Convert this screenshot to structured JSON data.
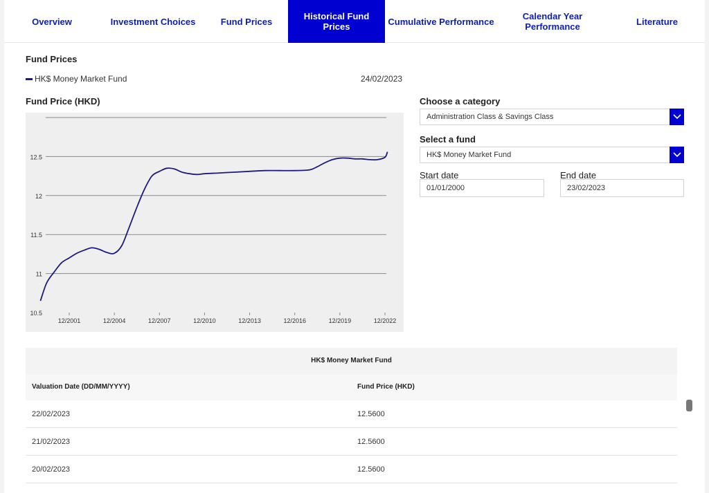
{
  "nav": {
    "tabs": [
      {
        "label": "Overview",
        "active": false
      },
      {
        "label": "Investment Choices",
        "active": false
      },
      {
        "label": "Fund Prices",
        "active": false
      },
      {
        "label": "Historical Fund Prices",
        "active": true
      },
      {
        "label": "Cumulative Performance",
        "active": false
      },
      {
        "label": "Calendar Year Performance",
        "active": false
      },
      {
        "label": "Literature",
        "active": false
      }
    ]
  },
  "fund_prices": {
    "title": "Fund Prices",
    "legend_fund": "HK$ Money Market Fund",
    "legend_date": "24/02/2023",
    "chart_title": "Fund Price (HKD)"
  },
  "filters": {
    "category_label": "Choose a category",
    "category_value": "Administration Class & Savings Class",
    "fund_label": "Select a fund",
    "fund_value": "HK$ Money Market Fund",
    "start_label": "Start date",
    "start_value": "01/01/2000",
    "end_label": "End date",
    "end_value": "23/02/2023"
  },
  "table": {
    "title": "HK$ Money Market Fund",
    "col_date": "Valuation Date (DD/MM/YYYY)",
    "col_price": "Fund Price (HKD)",
    "rows": [
      {
        "date": "22/02/2023",
        "price": "12.5600"
      },
      {
        "date": "21/02/2023",
        "price": "12.5600"
      },
      {
        "date": "20/02/2023",
        "price": "12.5600"
      }
    ]
  },
  "chart_data": {
    "type": "line",
    "title": "",
    "xlabel": "",
    "ylabel": "",
    "ylim": [
      10.5,
      13.0
    ],
    "yticks": [
      10.5,
      11,
      11.5,
      12,
      12.5
    ],
    "ytick_labels": [
      "10.5",
      "11",
      "11.5",
      "12",
      "12.5"
    ],
    "xticks": [
      "12/2001",
      "12/2004",
      "12/2007",
      "12/2010",
      "12/2013",
      "12/2016",
      "12/2019",
      "12/2022"
    ],
    "grid": true,
    "color": "#1a1a80",
    "series": [
      {
        "x": [
          "01/2000",
          "06/2000",
          "12/2000",
          "06/2001",
          "12/2001",
          "06/2002",
          "12/2002",
          "06/2003",
          "12/2003",
          "06/2004",
          "12/2004",
          "06/2005",
          "12/2005",
          "06/2006",
          "12/2006",
          "06/2007",
          "12/2007",
          "06/2008",
          "12/2008",
          "06/2009",
          "12/2009",
          "06/2010",
          "12/2010",
          "12/2011",
          "12/2012",
          "12/2013",
          "12/2014",
          "12/2015",
          "12/2016",
          "12/2017",
          "06/2018",
          "12/2018",
          "06/2019",
          "12/2019",
          "06/2020",
          "12/2020",
          "06/2021",
          "12/2021",
          "06/2022",
          "12/2022",
          "02/2023"
        ],
        "y": [
          10.65,
          10.88,
          11.02,
          11.14,
          11.2,
          11.26,
          11.3,
          11.33,
          11.31,
          11.27,
          11.26,
          11.36,
          11.6,
          11.85,
          12.08,
          12.25,
          12.31,
          12.35,
          12.34,
          12.3,
          12.28,
          12.27,
          12.28,
          12.29,
          12.3,
          12.31,
          12.32,
          12.32,
          12.32,
          12.33,
          12.37,
          12.42,
          12.46,
          12.48,
          12.48,
          12.47,
          12.47,
          12.46,
          12.46,
          12.49,
          12.56
        ]
      }
    ]
  }
}
